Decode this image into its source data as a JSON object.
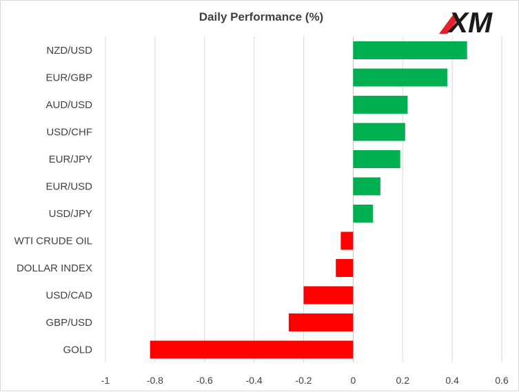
{
  "chart_data": {
    "type": "bar",
    "orientation": "horizontal",
    "title": "Daily Performance (%)",
    "xlabel": "",
    "ylabel": "",
    "categories": [
      "NZD/USD",
      "EUR/GBP",
      "AUD/USD",
      "USD/CHF",
      "EUR/JPY",
      "EUR/USD",
      "USD/JPY",
      "WTI CRUDE OIL",
      "DOLLAR INDEX",
      "USD/CAD",
      "GBP/USD",
      "GOLD"
    ],
    "values": [
      0.46,
      0.38,
      0.22,
      0.21,
      0.19,
      0.11,
      0.08,
      -0.05,
      -0.07,
      -0.2,
      -0.26,
      -0.82
    ],
    "xlim": [
      -1,
      0.6
    ],
    "xticks": [
      -1,
      -0.8,
      -0.6,
      -0.4,
      -0.2,
      0,
      0.2,
      0.4,
      0.6
    ],
    "xtick_labels": [
      "-1",
      "-0.8",
      "-0.6",
      "-0.4",
      "-0.2",
      "0",
      "0.2",
      "0.4",
      "0.6"
    ],
    "grid": "vertical",
    "legend": "none",
    "colors": {
      "positive": "#00b050",
      "negative": "#ff0000",
      "grid": "#d9d9d9",
      "text": "#404040"
    }
  },
  "logo": {
    "text": "XM",
    "colors": {
      "accent": "#e4202e",
      "text": "#1a1a1a"
    }
  }
}
